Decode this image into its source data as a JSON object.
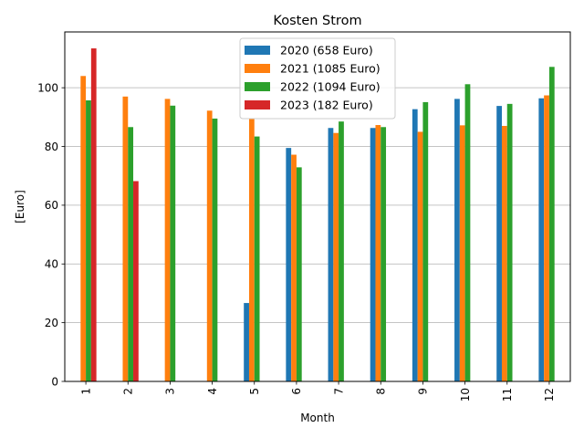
{
  "chart_data": {
    "type": "bar",
    "title": "Kosten Strom",
    "xlabel": "Month",
    "ylabel": "[Euro]",
    "categories": [
      "1",
      "2",
      "3",
      "4",
      "5",
      "6",
      "7",
      "8",
      "9",
      "10",
      "11",
      "12"
    ],
    "ylim": [
      0,
      119
    ],
    "yticks": [
      0,
      20,
      40,
      60,
      80,
      100
    ],
    "grid": "y",
    "legend_position": "top-center",
    "series": [
      {
        "name": "2020 (658 Euro)",
        "color": "#1f77b4",
        "values": [
          0,
          0,
          0,
          0,
          26.7,
          79.5,
          86.3,
          86.3,
          92.7,
          96.2,
          93.8,
          96.4
        ]
      },
      {
        "name": "2021 (1085 Euro)",
        "color": "#ff7f0e",
        "values": [
          104,
          97,
          96.2,
          92.2,
          89.4,
          77.2,
          84.6,
          87.3,
          85,
          87.2,
          87,
          97.4
        ]
      },
      {
        "name": "2022 (1094 Euro)",
        "color": "#2ca02c",
        "values": [
          95.7,
          86.6,
          93.9,
          89.5,
          83.4,
          72.9,
          88.5,
          86.6,
          95.1,
          101.2,
          94.5,
          107.1
        ]
      },
      {
        "name": "2023 (182 Euro)",
        "color": "#d62728",
        "values": [
          113.4,
          68.2,
          0,
          0,
          0,
          0,
          0,
          0,
          0,
          0,
          0,
          0
        ]
      }
    ]
  }
}
